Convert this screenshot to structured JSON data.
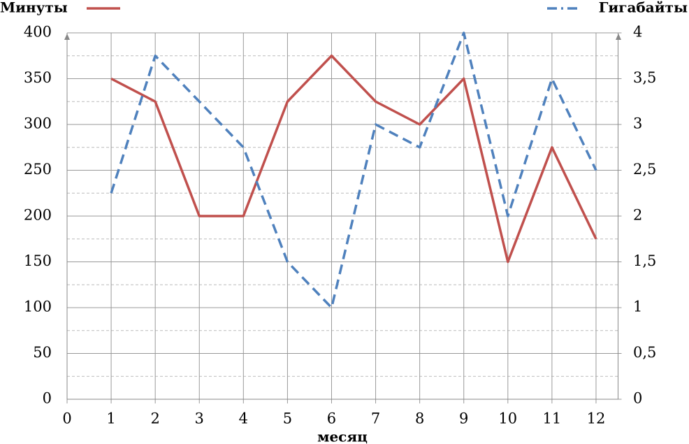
{
  "chart_data": {
    "type": "line",
    "x_label": "месяц",
    "x": [
      1,
      2,
      3,
      4,
      5,
      6,
      7,
      8,
      9,
      10,
      11,
      12
    ],
    "xlim": [
      0,
      12.5
    ],
    "xticks": [
      0,
      1,
      2,
      3,
      4,
      5,
      6,
      7,
      8,
      9,
      10,
      11,
      12
    ],
    "ylim": [
      0,
      400
    ],
    "yticks": [
      0,
      50,
      100,
      150,
      200,
      250,
      300,
      350,
      400
    ],
    "y2lim": [
      0,
      4
    ],
    "y2ticks": [
      0,
      {
        "value": 0.5,
        "label": "0,5"
      },
      1,
      {
        "value": 1.5,
        "label": "1,5"
      },
      2,
      {
        "value": 2.5,
        "label": "2,5"
      },
      3,
      {
        "value": 3.5,
        "label": "3,5"
      },
      4
    ],
    "grid": true,
    "series": [
      {
        "name": "Минуты",
        "color": "#c0504d",
        "values": [
          350,
          325,
          200,
          200,
          325,
          375,
          325,
          300,
          350,
          150,
          275,
          175
        ]
      },
      {
        "name": "Гигабайты",
        "color": "#4f81bd",
        "axis": "y2",
        "values": [
          2.25,
          3.75,
          3.25,
          2.75,
          1.5,
          1,
          3,
          2.75,
          4,
          2,
          3.5,
          2.5
        ]
      }
    ]
  }
}
